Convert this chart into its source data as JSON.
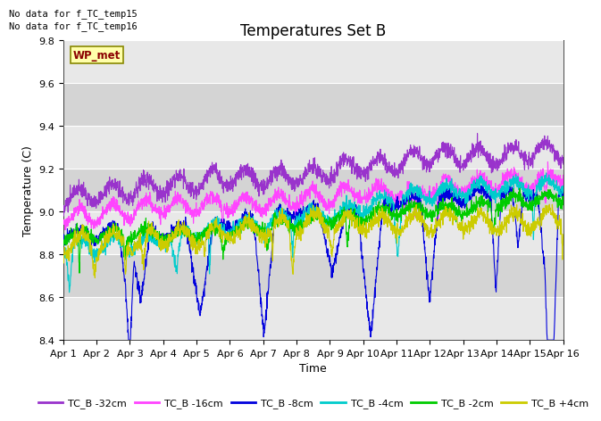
{
  "title": "Temperatures Set B",
  "xlabel": "Time",
  "ylabel": "Temperature (C)",
  "ylim": [
    8.4,
    9.8
  ],
  "xlim": [
    0,
    15
  ],
  "xtick_labels": [
    "Apr 1",
    "Apr 2",
    "Apr 3",
    "Apr 4",
    "Apr 5",
    "Apr 6",
    "Apr 7",
    "Apr 8",
    "Apr 9",
    "Apr 10",
    "Apr 11",
    "Apr 12",
    "Apr 13",
    "Apr 14",
    "Apr 15",
    "Apr 16"
  ],
  "ytick_values": [
    8.4,
    8.6,
    8.8,
    9.0,
    9.2,
    9.4,
    9.6,
    9.8
  ],
  "annotation1": "No data for f_TC_temp15",
  "annotation2": "No data for f_TC_temp16",
  "wpmet_label": "WP_met",
  "series_colors": [
    "#9933cc",
    "#ff44ff",
    "#0000dd",
    "#00cccc",
    "#00cc00",
    "#cccc00"
  ],
  "series_labels": [
    "TC_B -32cm",
    "TC_B -16cm",
    "TC_B -8cm",
    "TC_B -4cm",
    "TC_B -2cm",
    "TC_B +4cm"
  ],
  "n_points": 2160,
  "bg_light": "#e8e8e8",
  "bg_dark": "#d4d4d4",
  "title_fontsize": 12,
  "axis_fontsize": 9,
  "tick_fontsize": 8,
  "legend_fontsize": 8
}
